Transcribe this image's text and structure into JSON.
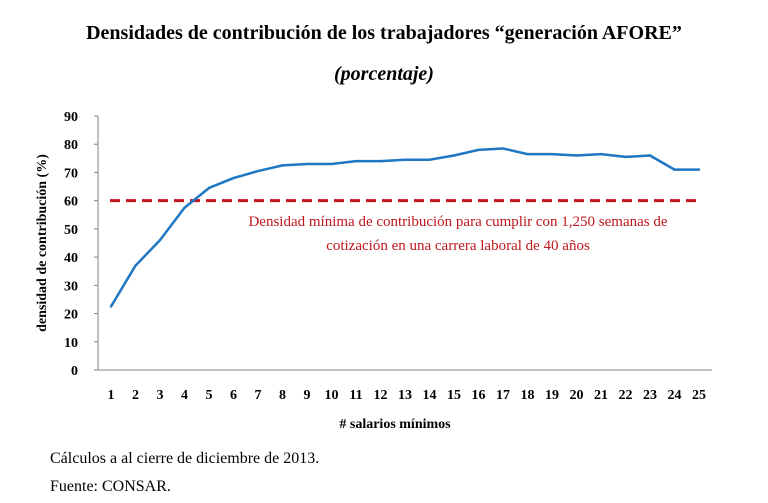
{
  "title": "Densidades de contribución de los trabajadores “generación AFORE”",
  "subtitle": "(porcentaje)",
  "notes": {
    "calc": "Cálculos a al cierre de diciembre de 2013.",
    "source": "Fuente: CONSAR."
  },
  "colors": {
    "series": "#1f77c4",
    "threshold": "#c0161c"
  },
  "chart_data": {
    "type": "line",
    "xlabel": "# salarios mínimos",
    "ylabel": "densidad de contribución (%)",
    "ylim": [
      0,
      90
    ],
    "yticks": [
      0,
      10,
      20,
      30,
      40,
      50,
      60,
      70,
      80,
      90
    ],
    "x": [
      1,
      2,
      3,
      4,
      5,
      6,
      7,
      8,
      9,
      10,
      11,
      12,
      13,
      14,
      15,
      16,
      17,
      18,
      19,
      20,
      21,
      22,
      23,
      24,
      25
    ],
    "series": [
      {
        "values": [
          22.5,
          37,
          46,
          57.5,
          64.5,
          68,
          70.5,
          72.5,
          73,
          73,
          74,
          74,
          74.5,
          74.5,
          76,
          78,
          78.5,
          76.5,
          76.5,
          76,
          76.5,
          75.5,
          76,
          71,
          71
        ]
      }
    ],
    "reference_line": {
      "value": 60,
      "label_line1": "Densidad mínima de contribución para cumplir con 1,250 semanas de",
      "label_line2": "cotización en una carrera laboral de 40 años"
    },
    "grid": false
  }
}
